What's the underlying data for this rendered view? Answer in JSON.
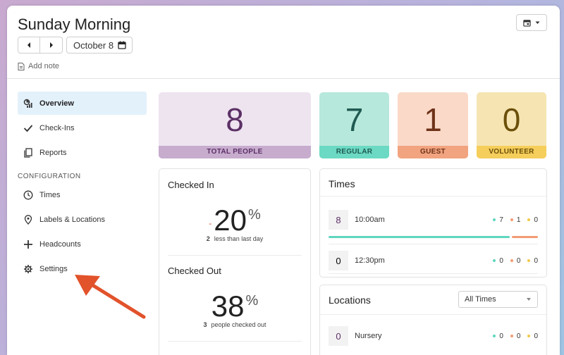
{
  "header": {
    "title": "Sunday Morning",
    "date_label": "October 8",
    "add_note_label": "Add note"
  },
  "sidebar": {
    "items": [
      {
        "label": "Overview",
        "icon": "overview-icon"
      },
      {
        "label": "Check-Ins",
        "icon": "check-icon"
      },
      {
        "label": "Reports",
        "icon": "reports-icon"
      }
    ],
    "section_label": "CONFIGURATION",
    "config_items": [
      {
        "label": "Times",
        "icon": "clock-icon"
      },
      {
        "label": "Labels & Locations",
        "icon": "location-pin-icon"
      },
      {
        "label": "Headcounts",
        "icon": "plus-icon"
      },
      {
        "label": "Settings",
        "icon": "gear-icon"
      }
    ]
  },
  "stats": [
    {
      "value": "8",
      "label": "TOTAL PEOPLE",
      "bg": "#ede4ef",
      "band": "#c7acce",
      "text": "#5c2f66"
    },
    {
      "value": "7",
      "label": "REGULAR",
      "bg": "#b7e8dc",
      "band": "#6bd9c3",
      "text": "#1f5a52"
    },
    {
      "value": "1",
      "label": "GUEST",
      "bg": "#fad9c8",
      "band": "#f1a47f",
      "text": "#6e3219"
    },
    {
      "value": "0",
      "label": "VOLUNTEER",
      "bg": "#f6e5b2",
      "band": "#f5ce5b",
      "text": "#6b4f0a"
    }
  ],
  "checked_in": {
    "title": "Checked In",
    "percent": "20",
    "percent_sign": "%",
    "delta_count": "2",
    "delta_text": "less than last day"
  },
  "checked_out": {
    "title": "Checked Out",
    "percent": "38",
    "percent_sign": "%",
    "count": "3",
    "text": "people checked out"
  },
  "times": {
    "title": "Times",
    "rows": [
      {
        "count": "8",
        "label": "10:00am",
        "regular": "7",
        "guest": "1",
        "volunteer": "0",
        "regular_share": 0.875,
        "guest_share": 0.125
      },
      {
        "count": "0",
        "label": "12:30pm",
        "regular": "0",
        "guest": "0",
        "volunteer": "0",
        "regular_share": 0,
        "guest_share": 0
      }
    ]
  },
  "locations": {
    "title": "Locations",
    "filter_value": "All Times",
    "rows": [
      {
        "count": "0",
        "label": "Nursery",
        "regular": "0",
        "guest": "0",
        "volunteer": "0"
      }
    ]
  },
  "colors": {
    "regular": "#5fd6bf",
    "guest": "#f29b74",
    "volunteer": "#f2c84b",
    "annotation_arrow": "#e2522b"
  }
}
